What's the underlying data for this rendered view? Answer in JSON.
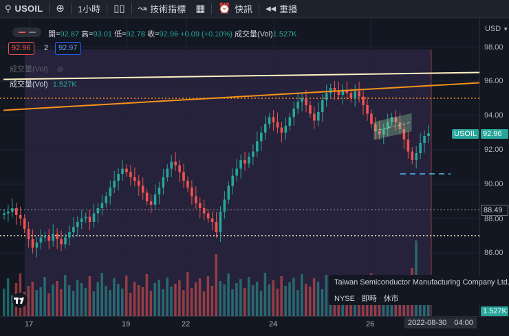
{
  "toolbar": {
    "symbol": "USOIL",
    "timeframe": "1小時",
    "indicators": "技術指標",
    "alert": "快訊",
    "replay": "重播"
  },
  "legend": {
    "open_label": "開=",
    "open": "92.87",
    "high_label": "高=",
    "high": "93.01",
    "low_label": "低=",
    "low": "92.78",
    "close_label": "收=",
    "close": "92.96",
    "change": "+0.09 (+0.10%)",
    "volume_label": "成交量(Vol)",
    "volume": "1.527K",
    "sell_price": "92.96",
    "spread": "2",
    "buy_price": "92.97"
  },
  "volume_pane": {
    "hidden_label": "成交量(Vol)",
    "label": "成交量(Vol)",
    "value": "1.527K"
  },
  "price_axis": {
    "currency": "USD",
    "ticks": [
      "98.00",
      "96.00",
      "94.00",
      "92.00",
      "90.00",
      "88.00",
      "86.00"
    ],
    "last_symbol": "USOIL",
    "last_price": "92.96",
    "crosshair_price": "88.49",
    "volume_tag": "1.527K"
  },
  "time_axis": {
    "ticks": [
      "17",
      "19",
      "22",
      "24",
      "26"
    ],
    "datetime_date": "2022-08-30",
    "datetime_time": "04:00"
  },
  "company_popup": {
    "name": "Taiwan Semiconductor Manufacturing Company Ltd.",
    "exchange": "NYSE",
    "realtime": "即時",
    "status": "休市"
  },
  "colors": {
    "up": "#26a69a",
    "down": "#ef5350",
    "background": "#131722",
    "trendline_upper": "#fff3c4",
    "trendline_lower": "#f7931a",
    "accent": "#2962ff"
  },
  "chart_data": {
    "type": "candlestick",
    "series": [
      {
        "name": "USOIL",
        "values": [
          88.3,
          88.4,
          88.6,
          88.2,
          88.0,
          87.4,
          86.8,
          86.3,
          86.6,
          86.9,
          87.0,
          86.7,
          87.1,
          86.8,
          86.5,
          86.9,
          87.2,
          87.5,
          87.8,
          88.0,
          88.1,
          87.8,
          88.3,
          88.6,
          88.9,
          89.3,
          89.8,
          90.2,
          90.6,
          90.9,
          90.7,
          90.4,
          90.2,
          89.9,
          89.5,
          89.0,
          88.8,
          89.4,
          89.8,
          90.4,
          90.9,
          91.3,
          91.1,
          90.7,
          90.2,
          89.8,
          89.3,
          88.9,
          88.6,
          88.3,
          88.0,
          87.8,
          87.2,
          88.4,
          89.1,
          89.9,
          90.5,
          90.9,
          91.4,
          91.2,
          91.6,
          91.9,
          92.5,
          93.0,
          93.5,
          93.9,
          93.6,
          93.3,
          93.0,
          93.4,
          93.9,
          94.4,
          94.8,
          95.0,
          94.6,
          94.1,
          93.7,
          94.2,
          94.9,
          95.3,
          95.6,
          95.4,
          95.2,
          95.5,
          95.3,
          95.0,
          95.4,
          95.1,
          94.6,
          94.1,
          93.5,
          93.1,
          92.9,
          93.2,
          93.6,
          93.9,
          93.6,
          93.2,
          92.6,
          91.9,
          91.4,
          91.8,
          92.4,
          92.8,
          92.96
        ]
      }
    ],
    "ylim": [
      84.0,
      99.0
    ],
    "volume": [
      40,
      55,
      30,
      48,
      62,
      35,
      44,
      50,
      38,
      42,
      57,
      33,
      46,
      51,
      39,
      60,
      45,
      37,
      52,
      48,
      41,
      58,
      36,
      49,
      63,
      44,
      38,
      55,
      47,
      40,
      59,
      34,
      50,
      45,
      42,
      61,
      37,
      48,
      53,
      39,
      56,
      43,
      47,
      52,
      38,
      64,
      41,
      49,
      55,
      36,
      58,
      44,
      90,
      51,
      46,
      62,
      39,
      48,
      54,
      41,
      57,
      45,
      50,
      37,
      63,
      46,
      52,
      40,
      58,
      44,
      49,
      56,
      38,
      61,
      47,
      43,
      55,
      50,
      39,
      60,
      46,
      42,
      57,
      48,
      53,
      41,
      59,
      44,
      50,
      38,
      62,
      47,
      54,
      43,
      56,
      40,
      52,
      49,
      58,
      45,
      70,
      110,
      60,
      40,
      30
    ],
    "horizontal_lines": [
      95.0,
      88.5,
      87.0
    ],
    "blue_dashed_level": 90.6,
    "trendlines": [
      {
        "name": "upper",
        "from": 96.1,
        "to": 96.5
      },
      {
        "name": "lower",
        "from": 94.3,
        "to": 95.9
      }
    ],
    "channel": {
      "from": [
        92.6,
        93.6
      ],
      "to": [
        93.1,
        94.1
      ]
    }
  }
}
